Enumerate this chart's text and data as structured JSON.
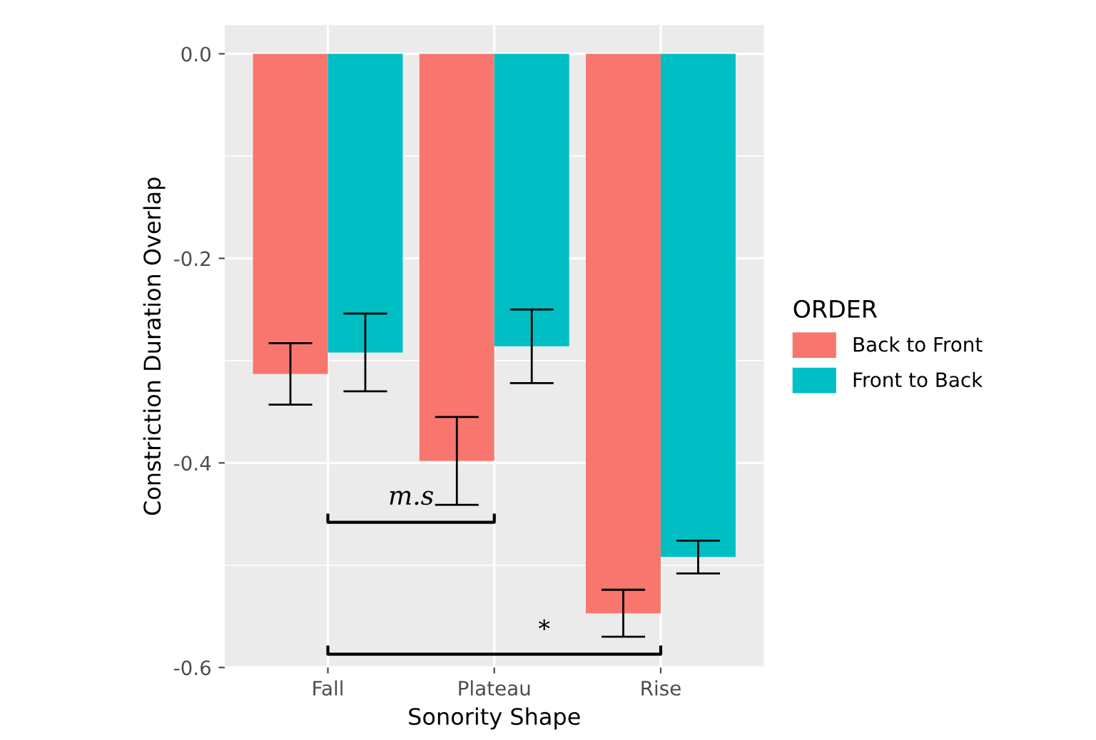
{
  "chart_data": {
    "type": "bar",
    "xlabel": "Sonority Shape",
    "ylabel": "Constriction Duration Overlap",
    "legend_title": "ORDER",
    "categories": [
      "Fall",
      "Plateau",
      "Rise"
    ],
    "series": [
      {
        "name": "Back to Front",
        "color": "#f8766d",
        "values": [
          -0.313,
          -0.398,
          -0.547
        ],
        "errors": [
          0.03,
          0.043,
          0.023
        ]
      },
      {
        "name": "Front to Back",
        "color": "#00bfc4",
        "values": [
          -0.292,
          -0.286,
          -0.492
        ],
        "errors": [
          0.038,
          0.036,
          0.016
        ]
      }
    ],
    "ylim": [
      -0.6,
      0.028
    ],
    "yticks": [
      {
        "value": 0.0,
        "label": "0.0"
      },
      {
        "value": -0.2,
        "label": "-0.2"
      },
      {
        "value": -0.4,
        "label": "-0.4"
      },
      {
        "value": -0.6,
        "label": "-0.6"
      }
    ],
    "grid": true,
    "legend": "right",
    "annotations": [
      "m.s",
      "*"
    ]
  }
}
